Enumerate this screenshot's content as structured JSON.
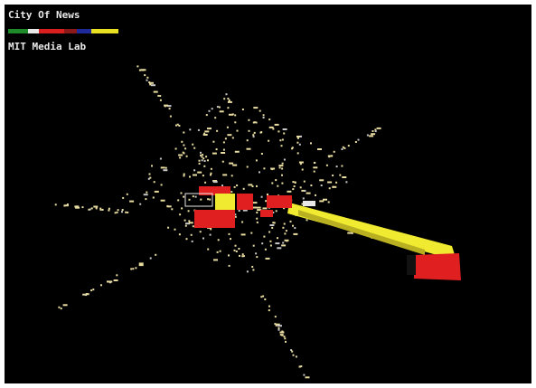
{
  "header": {
    "title": "City Of News",
    "subtitle": "MIT Media Lab"
  }
}
